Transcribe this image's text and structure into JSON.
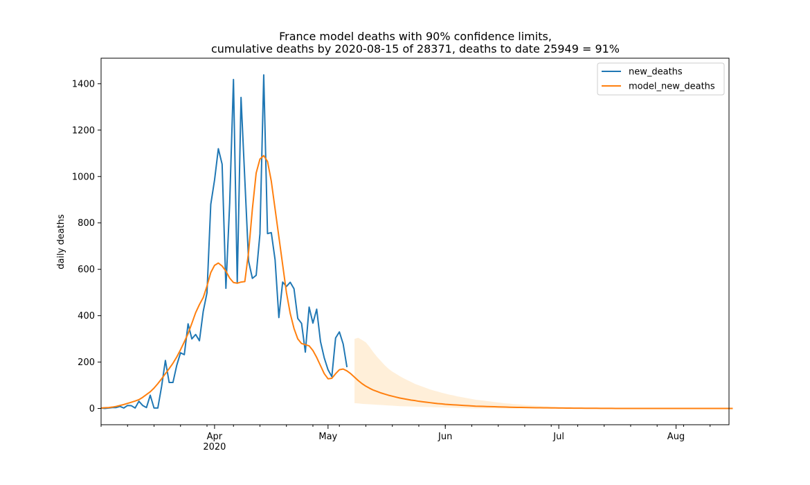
{
  "chart_data": {
    "type": "line",
    "title_line1": "France model deaths with 90% confidence limits,",
    "title_line2": "cumulative deaths by 2020-08-15 of 28371, deaths to date 25949 = 91%",
    "xlabel": "",
    "ylabel": "daily deaths",
    "xlim": [
      "2020-03-02",
      "2020-08-15"
    ],
    "ylim": [
      -70,
      1510
    ],
    "grid": false,
    "legend_placement": "top-right",
    "y_ticks": [
      0,
      200,
      400,
      600,
      800,
      1000,
      1200,
      1400
    ],
    "x_major_ticks": [
      {
        "date": "2020-04-01",
        "label": "Apr",
        "sublabel": "2020"
      },
      {
        "date": "2020-05-01",
        "label": "May",
        "sublabel": ""
      },
      {
        "date": "2020-06-01",
        "label": "Jun",
        "sublabel": ""
      },
      {
        "date": "2020-07-01",
        "label": "Jul",
        "sublabel": ""
      },
      {
        "date": "2020-08-01",
        "label": "Aug",
        "sublabel": ""
      }
    ],
    "x_minor_tick_interval_days": 7,
    "start_date": "2020-03-02",
    "series": [
      {
        "name": "new_deaths",
        "color": "#1f77b4",
        "start": "2020-03-02",
        "values": [
          2,
          0,
          2,
          4,
          4,
          9,
          2,
          13,
          12,
          2,
          31,
          13,
          4,
          57,
          2,
          2,
          95,
          207,
          112,
          112,
          186,
          240,
          232,
          365,
          300,
          319,
          292,
          418,
          499,
          880,
          985,
          1120,
          1053,
          518,
          885,
          1418,
          541,
          1341,
          987,
          635,
          561,
          574,
          753,
          1438,
          754,
          758,
          641,
          392,
          545,
          526,
          544,
          516,
          388,
          367,
          243,
          437,
          368,
          428,
          289,
          218,
          167,
          137,
          304,
          330,
          278,
          178
        ]
      },
      {
        "name": "model_new_deaths",
        "color": "#ff7f0e",
        "start": "2020-03-02",
        "values": [
          2,
          3,
          4,
          6,
          9,
          13,
          17,
          22,
          27,
          32,
          38,
          48,
          60,
          72,
          88,
          107,
          128,
          150,
          172,
          195,
          222,
          253,
          287,
          323,
          367,
          413,
          448,
          478,
          528,
          586,
          617,
          627,
          614,
          592,
          562,
          543,
          540,
          545,
          547,
          675,
          860,
          1015,
          1075,
          1090,
          1065,
          980,
          860,
          740,
          620,
          500,
          410,
          345,
          300,
          280,
          275,
          270,
          250,
          220,
          185,
          150,
          128,
          130,
          150,
          167,
          170,
          162,
          150,
          135,
          120,
          107,
          96,
          87,
          79,
          73,
          67,
          62,
          57,
          53,
          49,
          45,
          42,
          39,
          36,
          34,
          31,
          29,
          27,
          25,
          23,
          21,
          20,
          18,
          17,
          16,
          15,
          14,
          13,
          12,
          11,
          10,
          9.5,
          9,
          8.5,
          8,
          7.5,
          7,
          6.5,
          6,
          5.6,
          5.2,
          4.8,
          4.5,
          4.2,
          3.9,
          3.6,
          3.3,
          3.1,
          2.9,
          2.7,
          2.5,
          2.3,
          2.1,
          1.9,
          1.7,
          1.5,
          1.4,
          1.3,
          1.2,
          1.1,
          1,
          0.9,
          0.8,
          0.7,
          0.6,
          0.5,
          0.4,
          0.3,
          0.2,
          0.1,
          0,
          0,
          0,
          0,
          0,
          0,
          0,
          0,
          0,
          0,
          0,
          0,
          0,
          0,
          0,
          0,
          0,
          0,
          0,
          0,
          0,
          0,
          0,
          0,
          0,
          0,
          0,
          0,
          0
        ]
      }
    ],
    "confidence_band": {
      "color": "#ffecd2",
      "start": "2020-05-08",
      "upper": [
        300,
        305,
        295,
        285,
        265,
        242,
        222,
        204,
        186,
        171,
        159,
        149,
        139,
        130,
        122,
        114,
        106,
        100,
        94,
        88,
        82,
        77,
        73,
        68,
        64,
        60,
        57,
        53,
        50,
        47,
        44,
        41,
        38,
        36,
        34,
        32,
        30,
        28,
        26,
        24,
        22,
        21,
        19,
        18,
        17,
        15,
        14,
        13,
        12,
        11,
        10,
        9,
        8,
        7,
        6,
        5,
        4,
        3,
        2,
        1
      ],
      "lower": [
        23,
        22,
        20,
        19,
        18,
        17,
        16,
        15,
        14,
        13,
        12,
        11,
        10,
        9.5,
        9,
        8.5,
        8,
        7.5,
        7,
        6.5,
        6,
        5.5,
        5,
        4.5,
        4,
        3.5,
        3,
        2.5,
        2,
        1.5,
        1,
        0.5,
        0,
        0,
        0,
        0,
        0,
        0,
        0,
        0,
        0,
        0,
        0,
        0,
        0,
        0,
        0,
        0,
        0,
        0,
        0,
        0,
        0,
        0,
        0,
        0,
        0,
        0,
        0,
        0
      ]
    }
  }
}
